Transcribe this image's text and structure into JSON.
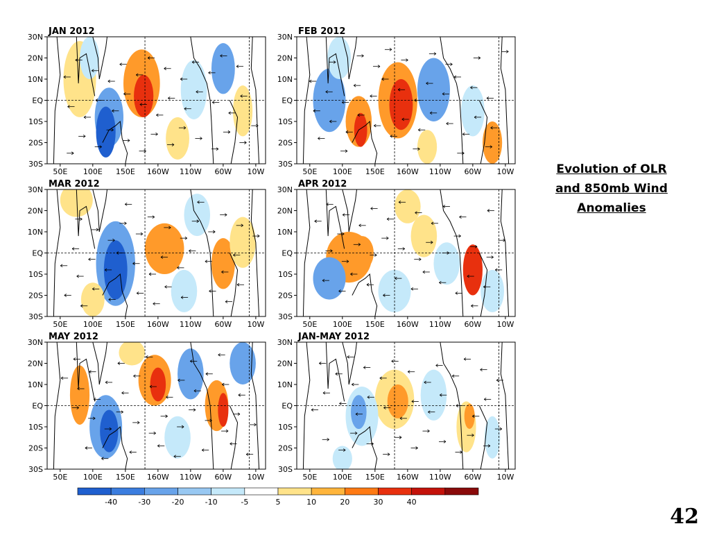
{
  "side_title": {
    "line1": "Evolution of OLR",
    "line2": "and 850mb Wind",
    "line3": "Anomalies"
  },
  "page_number": "42",
  "chart_data": {
    "type": "heatmap",
    "subtype": "lat-lon anomaly maps with wind vectors",
    "grid": false,
    "panels": [
      {
        "title": "JAN 2012"
      },
      {
        "title": "FEB 2012"
      },
      {
        "title": "MAR 2012"
      },
      {
        "title": "APR 2012"
      },
      {
        "title": "MAY 2012"
      },
      {
        "title": "JAN-MAY 2012"
      }
    ],
    "lat_ticks": [
      "30N",
      "20N",
      "10N",
      "EQ",
      "10S",
      "20S",
      "30S"
    ],
    "lat_values": [
      30,
      20,
      10,
      0,
      -10,
      -20,
      -30
    ],
    "lon_ticks": [
      "50E",
      "100E",
      "150E",
      "160W",
      "110W",
      "60W",
      "10W"
    ],
    "lon_values": [
      50,
      100,
      150,
      200,
      250,
      300,
      350
    ],
    "xlim": [
      30,
      365
    ],
    "ylim": [
      -30,
      30
    ],
    "colorbar": {
      "ticks": [
        "-40",
        "-30",
        "-20",
        "-10",
        "-5",
        "5",
        "10",
        "20",
        "30",
        "40"
      ],
      "colors": [
        "#1f5fcf",
        "#3b7ddf",
        "#68a3ea",
        "#98c8f2",
        "#c5e9fa",
        "#ffffff",
        "#ffe38a",
        "#ffb53c",
        "#ff7a14",
        "#e8300e",
        "#c4120a",
        "#8a0a0a"
      ]
    },
    "anomaly_colors": {
      "strong_positive": "#e8300e",
      "positive": "#ff9a2a",
      "weak_positive": "#ffe38a",
      "weak_negative": "#c5e9fa",
      "negative": "#68a3ea",
      "strong_negative": "#1f5fcf"
    }
  }
}
